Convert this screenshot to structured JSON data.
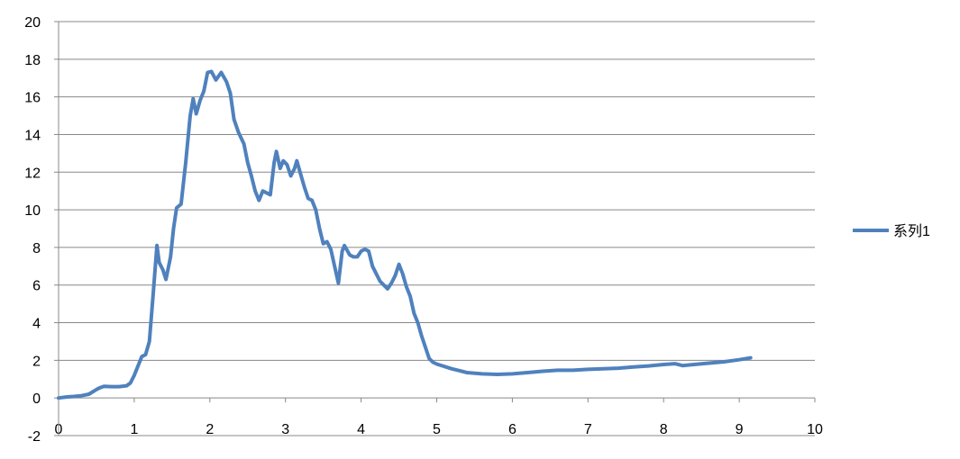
{
  "chart_data": {
    "type": "line",
    "title": "",
    "xlabel": "",
    "ylabel": "",
    "xlim": [
      0,
      10
    ],
    "ylim": [
      -2,
      20
    ],
    "x_ticks": [
      "0",
      "1",
      "2",
      "3",
      "4",
      "5",
      "6",
      "7",
      "8",
      "9",
      "10"
    ],
    "y_ticks": [
      "20",
      "18",
      "16",
      "14",
      "12",
      "10",
      "8",
      "6",
      "4",
      "2",
      "0",
      "-2"
    ],
    "grid": "horizontal",
    "legend_position": "right",
    "series_color": "#4F81BD",
    "series": [
      {
        "name": "系列1",
        "points": [
          [
            0.0,
            0.0
          ],
          [
            0.1,
            0.05
          ],
          [
            0.2,
            0.08
          ],
          [
            0.3,
            0.12
          ],
          [
            0.4,
            0.2
          ],
          [
            0.5,
            0.45
          ],
          [
            0.55,
            0.55
          ],
          [
            0.6,
            0.62
          ],
          [
            0.7,
            0.6
          ],
          [
            0.8,
            0.6
          ],
          [
            0.9,
            0.65
          ],
          [
            0.95,
            0.8
          ],
          [
            1.0,
            1.2
          ],
          [
            1.05,
            1.7
          ],
          [
            1.1,
            2.2
          ],
          [
            1.15,
            2.3
          ],
          [
            1.2,
            3.0
          ],
          [
            1.25,
            5.5
          ],
          [
            1.3,
            8.1
          ],
          [
            1.33,
            7.2
          ],
          [
            1.38,
            6.8
          ],
          [
            1.42,
            6.3
          ],
          [
            1.48,
            7.5
          ],
          [
            1.52,
            9.0
          ],
          [
            1.56,
            10.1
          ],
          [
            1.62,
            10.3
          ],
          [
            1.68,
            12.5
          ],
          [
            1.74,
            15.0
          ],
          [
            1.78,
            15.9
          ],
          [
            1.82,
            15.1
          ],
          [
            1.87,
            15.8
          ],
          [
            1.92,
            16.3
          ],
          [
            1.97,
            17.3
          ],
          [
            2.02,
            17.35
          ],
          [
            2.08,
            16.9
          ],
          [
            2.15,
            17.3
          ],
          [
            2.22,
            16.8
          ],
          [
            2.27,
            16.2
          ],
          [
            2.32,
            14.8
          ],
          [
            2.38,
            14.1
          ],
          [
            2.45,
            13.5
          ],
          [
            2.5,
            12.5
          ],
          [
            2.55,
            11.8
          ],
          [
            2.6,
            11.0
          ],
          [
            2.65,
            10.5
          ],
          [
            2.7,
            11.0
          ],
          [
            2.75,
            10.9
          ],
          [
            2.8,
            10.8
          ],
          [
            2.85,
            12.5
          ],
          [
            2.88,
            13.1
          ],
          [
            2.93,
            12.2
          ],
          [
            2.97,
            12.6
          ],
          [
            3.02,
            12.4
          ],
          [
            3.07,
            11.8
          ],
          [
            3.12,
            12.2
          ],
          [
            3.15,
            12.6
          ],
          [
            3.2,
            11.9
          ],
          [
            3.25,
            11.2
          ],
          [
            3.3,
            10.6
          ],
          [
            3.35,
            10.5
          ],
          [
            3.4,
            10.0
          ],
          [
            3.45,
            9.0
          ],
          [
            3.5,
            8.2
          ],
          [
            3.55,
            8.3
          ],
          [
            3.6,
            7.9
          ],
          [
            3.65,
            7.0
          ],
          [
            3.7,
            6.1
          ],
          [
            3.75,
            7.8
          ],
          [
            3.78,
            8.1
          ],
          [
            3.85,
            7.6
          ],
          [
            3.9,
            7.5
          ],
          [
            3.95,
            7.5
          ],
          [
            4.0,
            7.8
          ],
          [
            4.05,
            7.9
          ],
          [
            4.1,
            7.8
          ],
          [
            4.15,
            7.0
          ],
          [
            4.2,
            6.6
          ],
          [
            4.25,
            6.2
          ],
          [
            4.3,
            6.0
          ],
          [
            4.35,
            5.8
          ],
          [
            4.4,
            6.1
          ],
          [
            4.45,
            6.5
          ],
          [
            4.5,
            7.1
          ],
          [
            4.55,
            6.6
          ],
          [
            4.6,
            5.9
          ],
          [
            4.65,
            5.4
          ],
          [
            4.7,
            4.5
          ],
          [
            4.75,
            4.0
          ],
          [
            4.8,
            3.3
          ],
          [
            4.85,
            2.7
          ],
          [
            4.9,
            2.1
          ],
          [
            4.95,
            1.9
          ],
          [
            5.0,
            1.8
          ],
          [
            5.2,
            1.55
          ],
          [
            5.4,
            1.35
          ],
          [
            5.6,
            1.28
          ],
          [
            5.8,
            1.25
          ],
          [
            6.0,
            1.28
          ],
          [
            6.2,
            1.35
          ],
          [
            6.4,
            1.42
          ],
          [
            6.6,
            1.47
          ],
          [
            6.8,
            1.47
          ],
          [
            7.0,
            1.52
          ],
          [
            7.2,
            1.55
          ],
          [
            7.4,
            1.58
          ],
          [
            7.6,
            1.65
          ],
          [
            7.8,
            1.7
          ],
          [
            8.0,
            1.78
          ],
          [
            8.15,
            1.82
          ],
          [
            8.25,
            1.72
          ],
          [
            8.4,
            1.78
          ],
          [
            8.6,
            1.85
          ],
          [
            8.8,
            1.92
          ],
          [
            9.0,
            2.03
          ],
          [
            9.15,
            2.13
          ]
        ]
      }
    ]
  }
}
